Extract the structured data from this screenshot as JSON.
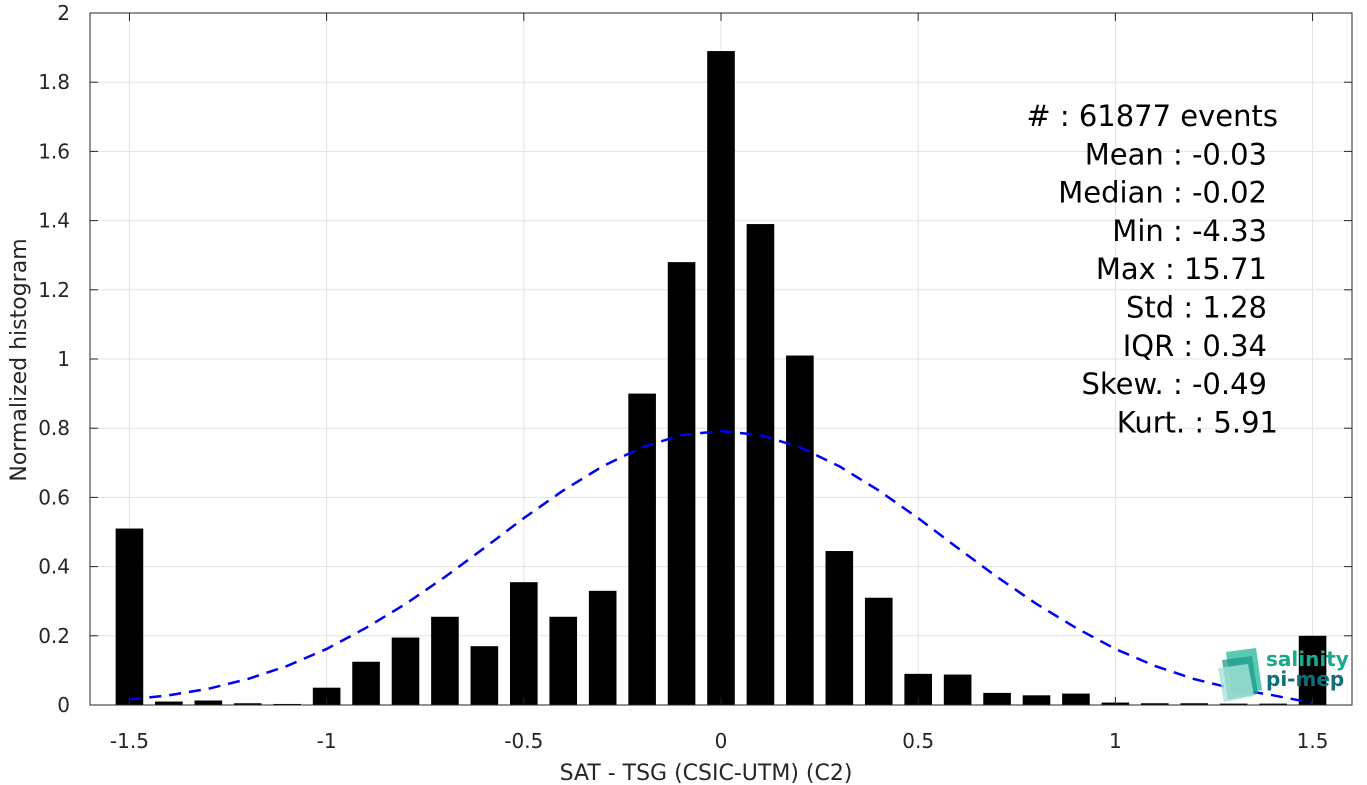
{
  "chart_data": {
    "type": "bar",
    "xlabel": "SAT - TSG (CSIC-UTM) (C2)",
    "ylabel": "Normalized histogram",
    "xlim": [
      -1.6,
      1.6
    ],
    "ylim": [
      0,
      2
    ],
    "xticks": [
      "-1.5",
      "-1",
      "-0.5",
      "0",
      "0.5",
      "1",
      "1.5"
    ],
    "yticks": [
      "0",
      "0.2",
      "0.4",
      "0.6",
      "0.8",
      "1",
      "1.2",
      "1.4",
      "1.6",
      "1.8",
      "2"
    ],
    "grid": true,
    "bar_color": "#000000",
    "bars": {
      "x": [
        -1.5,
        -1.4,
        -1.3,
        -1.2,
        -1.1,
        -1.0,
        -0.9,
        -0.8,
        -0.7,
        -0.6,
        -0.5,
        -0.4,
        -0.3,
        -0.2,
        -0.1,
        0.0,
        0.1,
        0.2,
        0.3,
        0.4,
        0.5,
        0.6,
        0.7,
        0.8,
        0.9,
        1.0,
        1.1,
        1.2,
        1.3,
        1.4,
        1.5
      ],
      "values": [
        0.51,
        0.01,
        0.013,
        0.005,
        0.003,
        0.05,
        0.125,
        0.195,
        0.255,
        0.17,
        0.355,
        0.255,
        0.33,
        0.9,
        1.28,
        1.89,
        1.39,
        1.01,
        0.445,
        0.31,
        0.09,
        0.088,
        0.035,
        0.028,
        0.033,
        0.007,
        0.005,
        0.005,
        0.004,
        0.004,
        0.2
      ]
    },
    "fit_curve": {
      "style": "dashed",
      "color": "#0000ee",
      "x": [
        -1.5,
        -1.4,
        -1.3,
        -1.2,
        -1.1,
        -1.0,
        -0.9,
        -0.8,
        -0.7,
        -0.6,
        -0.5,
        -0.4,
        -0.3,
        -0.2,
        -0.1,
        0.0,
        0.1,
        0.2,
        0.3,
        0.4,
        0.5,
        0.6,
        0.7,
        0.8,
        0.9,
        1.0,
        1.1,
        1.2,
        1.3,
        1.4,
        1.5
      ],
      "y": [
        0.016,
        0.028,
        0.047,
        0.075,
        0.113,
        0.162,
        0.223,
        0.292,
        0.37,
        0.454,
        0.54,
        0.62,
        0.69,
        0.745,
        0.78,
        0.792,
        0.78,
        0.745,
        0.69,
        0.62,
        0.54,
        0.454,
        0.37,
        0.292,
        0.223,
        0.162,
        0.113,
        0.075,
        0.047,
        0.028,
        0.006
      ]
    }
  },
  "stats": [
    "#  : 61877 events",
    "Mean : -0.03",
    "Median : -0.02",
    "Min : -4.33",
    "Max : 15.71",
    "Std : 1.28",
    "IQR : 0.34",
    "Skew. : -0.49",
    "Kurt. : 5.91"
  ],
  "logo": {
    "line1": "salinity",
    "line2": "pi-mep",
    "color1": "#1aa88e",
    "color2": "#0e6f7a"
  }
}
